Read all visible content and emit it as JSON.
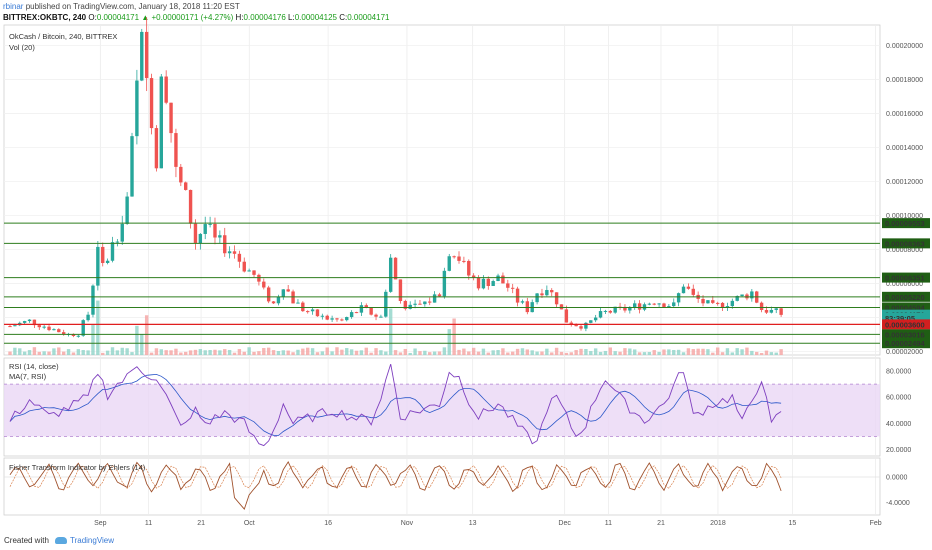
{
  "header": {
    "author": "rbinar",
    "published_text": "published on TradingView.com, January 18, 2018 11:20 EST",
    "symbol": "BITTREX:OKBTC, 240",
    "o_label": "O:",
    "o_value": "0.00004171",
    "change": "▲ +0.00000171 (+4.27%)",
    "h_label": "H:",
    "h_value": "0.00004176",
    "l_label": "L:",
    "l_value": "0.00004125",
    "c_label": "C:",
    "c_value": "0.00004171"
  },
  "panes": {
    "main_title": "OkCash / Bitcoin, 240, BITTREX",
    "vol_label": "Vol (20)",
    "rsi_label": "RSI (14, close)",
    "rsi_ma_label": "MA(7, RSI)",
    "fisher_label": "Fisher Transform Indicator by Ehlers (14)"
  },
  "footer": {
    "created_with": "Created with",
    "brand": "TradingView"
  },
  "colors": {
    "up": "#26a69a",
    "down": "#ef5350",
    "green_line": "#2e7d1e",
    "red_line": "#e01f1f",
    "rsi_line": "#7e3fbf",
    "rsi_ma": "#2b57c9",
    "rsi_band": "#ead7f5",
    "fisher": "#a0522d",
    "fisher_trigger": "#d9824e"
  },
  "chart_data": [
    {
      "type": "candlestick",
      "title": "OkCash / Bitcoin, 240, BITTREX",
      "x_ticks": [
        "Sep",
        "11",
        "21",
        "Oct",
        "16",
        "Nov",
        "13",
        "Dec",
        "11",
        "21",
        "2018",
        "15",
        "Feb"
      ],
      "y_ticks": [
        "0.00020000",
        "0.00018000",
        "0.00016000",
        "0.00014000",
        "0.00012000",
        "0.00010000",
        "0.00008000",
        "0.00006000",
        "0.00004000",
        "0.00002000"
      ],
      "ylim": [
        1.8e-05,
        0.000212
      ],
      "price_labels": [
        "0.00009553",
        "0.00008363",
        "0.00006351",
        "0.00005220",
        "0.00004594",
        "0.00004171",
        "83:39:05",
        "0.00003600",
        "0.00003016",
        "0.00002494"
      ],
      "horizontal_levels": [
        {
          "value": 9.553e-05,
          "color": "green"
        },
        {
          "value": 8.363e-05,
          "color": "green"
        },
        {
          "value": 6.351e-05,
          "color": "green"
        },
        {
          "value": 5.22e-05,
          "color": "green"
        },
        {
          "value": 4.594e-05,
          "color": "green"
        },
        {
          "value": 3.6e-05,
          "color": "red"
        },
        {
          "value": 3.016e-05,
          "color": "green"
        },
        {
          "value": 2.494e-05,
          "color": "green"
        }
      ],
      "price_path": [
        [
          0,
          3.5e-05
        ],
        [
          4,
          3.8e-05
        ],
        [
          6,
          3.6e-05
        ],
        [
          8,
          3.4e-05
        ],
        [
          10,
          3.2e-05
        ],
        [
          12,
          3e-05
        ],
        [
          14,
          3.1e-05
        ],
        [
          16,
          4.2e-05
        ],
        [
          18,
          7.9e-05
        ],
        [
          19,
          7e-05
        ],
        [
          20,
          7.5e-05
        ],
        [
          22,
          9e-05
        ],
        [
          24,
          0.00011
        ],
        [
          25,
          0.00014
        ],
        [
          26,
          0.000175
        ],
        [
          27,
          0.0002
        ],
        [
          28,
          0.00018
        ],
        [
          29,
          0.00016
        ],
        [
          30,
          0.00013
        ],
        [
          31,
          0.00019
        ],
        [
          32,
          0.000175
        ],
        [
          33,
          0.00015
        ],
        [
          34,
          0.000125
        ],
        [
          36,
          0.00011
        ],
        [
          38,
          8.5e-05
        ],
        [
          40,
          9.5e-05
        ],
        [
          42,
          8.5e-05
        ],
        [
          44,
          8.2e-05
        ],
        [
          46,
          7.8e-05
        ],
        [
          48,
          7e-05
        ],
        [
          50,
          6.5e-05
        ],
        [
          52,
          5.5e-05
        ],
        [
          54,
          4.8e-05
        ],
        [
          56,
          6e-05
        ],
        [
          58,
          5e-05
        ],
        [
          60,
          4.5e-05
        ],
        [
          64,
          4e-05
        ],
        [
          68,
          3.8e-05
        ],
        [
          70,
          4.2e-05
        ],
        [
          72,
          4.5e-05
        ],
        [
          76,
          4e-05
        ],
        [
          78,
          7.5e-05
        ],
        [
          80,
          5e-05
        ],
        [
          82,
          4.5e-05
        ],
        [
          86,
          5e-05
        ],
        [
          88,
          5.5e-05
        ],
        [
          90,
          8e-05
        ],
        [
          92,
          7.5e-05
        ],
        [
          94,
          6.5e-05
        ],
        [
          96,
          6e-05
        ],
        [
          100,
          6.3e-05
        ],
        [
          102,
          5.8e-05
        ],
        [
          104,
          5e-05
        ],
        [
          106,
          4.5e-05
        ],
        [
          108,
          5.5e-05
        ],
        [
          110,
          5.8e-05
        ],
        [
          112,
          5e-05
        ],
        [
          114,
          3.8e-05
        ],
        [
          116,
          3.6e-05
        ],
        [
          118,
          3.5e-05
        ],
        [
          120,
          4e-05
        ],
        [
          122,
          4.3e-05
        ],
        [
          126,
          4.5e-05
        ],
        [
          130,
          4.8e-05
        ],
        [
          132,
          5e-05
        ],
        [
          136,
          4.7e-05
        ],
        [
          138,
          6e-05
        ],
        [
          140,
          5.2e-05
        ],
        [
          144,
          4.6e-05
        ],
        [
          148,
          5e-05
        ],
        [
          152,
          5.5e-05
        ],
        [
          154,
          4.5e-05
        ],
        [
          157,
          4.3e-05
        ],
        [
          158,
          4.2e-05
        ]
      ],
      "volume_label": "Vol (20)"
    },
    {
      "type": "line",
      "title": "RSI (14, close)",
      "series": [
        {
          "name": "RSI (14, close)"
        },
        {
          "name": "MA(7, RSI)"
        }
      ],
      "y_ticks": [
        "80.0000",
        "60.0000",
        "40.0000",
        "20.0000"
      ],
      "ylim": [
        15,
        90
      ],
      "bands": [
        30,
        70
      ],
      "rsi_path": [
        [
          0,
          42
        ],
        [
          4,
          58
        ],
        [
          8,
          45
        ],
        [
          12,
          52
        ],
        [
          16,
          60
        ],
        [
          18,
          80
        ],
        [
          20,
          62
        ],
        [
          22,
          70
        ],
        [
          24,
          75
        ],
        [
          26,
          85
        ],
        [
          28,
          78
        ],
        [
          30,
          72
        ],
        [
          32,
          60
        ],
        [
          34,
          45
        ],
        [
          36,
          38
        ],
        [
          38,
          50
        ],
        [
          40,
          40
        ],
        [
          44,
          48
        ],
        [
          48,
          40
        ],
        [
          50,
          28
        ],
        [
          52,
          22
        ],
        [
          54,
          35
        ],
        [
          56,
          55
        ],
        [
          58,
          40
        ],
        [
          62,
          45
        ],
        [
          66,
          50
        ],
        [
          70,
          45
        ],
        [
          74,
          42
        ],
        [
          76,
          60
        ],
        [
          78,
          85
        ],
        [
          80,
          45
        ],
        [
          84,
          50
        ],
        [
          88,
          55
        ],
        [
          90,
          80
        ],
        [
          92,
          75
        ],
        [
          94,
          58
        ],
        [
          96,
          45
        ],
        [
          100,
          55
        ],
        [
          104,
          38
        ],
        [
          106,
          30
        ],
        [
          108,
          25
        ],
        [
          110,
          52
        ],
        [
          112,
          60
        ],
        [
          114,
          45
        ],
        [
          116,
          30
        ],
        [
          118,
          40
        ],
        [
          120,
          60
        ],
        [
          122,
          75
        ],
        [
          126,
          55
        ],
        [
          130,
          42
        ],
        [
          134,
          55
        ],
        [
          138,
          82
        ],
        [
          140,
          45
        ],
        [
          144,
          55
        ],
        [
          148,
          60
        ],
        [
          150,
          40
        ],
        [
          154,
          75
        ],
        [
          156,
          38
        ],
        [
          158,
          50
        ]
      ]
    },
    {
      "type": "line",
      "title": "Fisher Transform Indicator by Ehlers (14)",
      "series": [
        {
          "name": "Fisher Transform Indicator by Ehlers (14)"
        }
      ],
      "y_ticks": [
        "0.0000",
        "-4.0000"
      ],
      "ylim": [
        -6,
        3
      ],
      "fisher_cycles": 26
    }
  ]
}
